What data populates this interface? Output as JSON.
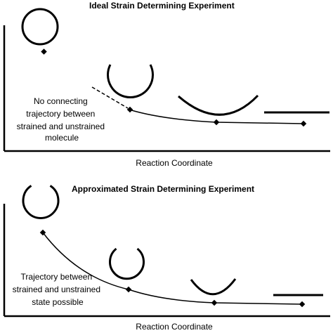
{
  "panels": {
    "ideal": {
      "title": "Ideal Strain Determining Experiment",
      "note_lines": [
        "No connecting",
        "trajectory between",
        "strained and unstrained",
        "molecule"
      ],
      "x_axis_label": "Reaction Coordinate"
    },
    "approx": {
      "title": "Approximated Strain Determining Experiment",
      "note_lines": [
        "Trajectory between",
        "strained and unstrained",
        "state possible"
      ],
      "x_axis_label": "Reaction Coordinate"
    }
  }
}
